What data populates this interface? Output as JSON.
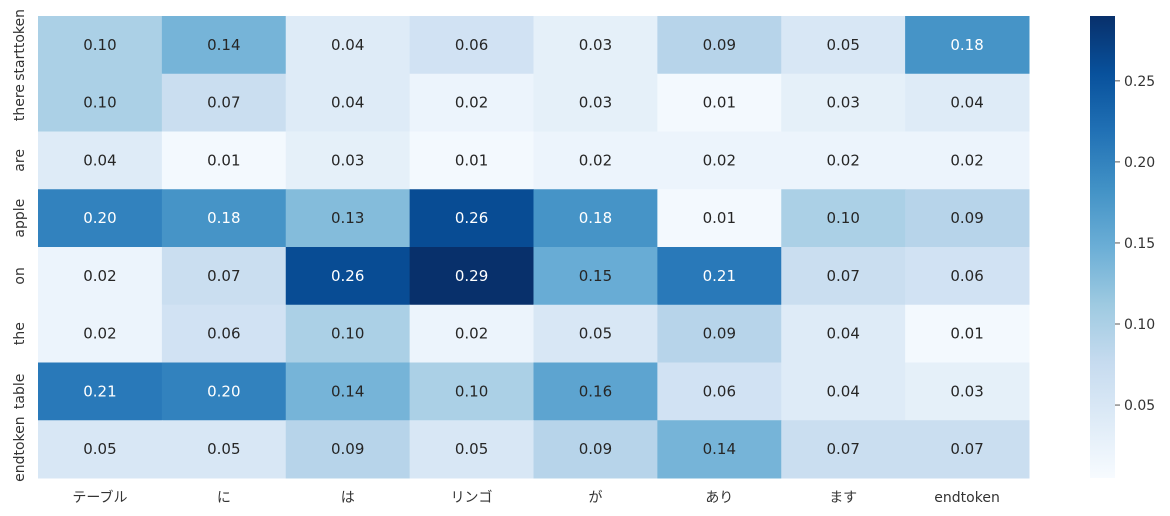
{
  "chart_data": {
    "type": "heatmap",
    "title": "",
    "xlabel": "",
    "ylabel": "",
    "x_categories": [
      "テーブル",
      "に",
      "は",
      "リンゴ",
      "が",
      "あり",
      "ます",
      "endtoken"
    ],
    "y_categories": [
      "starttoken",
      "there",
      "are",
      "apple",
      "on",
      "the",
      "table",
      "endtoken"
    ],
    "values": [
      [
        0.1,
        0.14,
        0.04,
        0.06,
        0.03,
        0.09,
        0.05,
        0.18
      ],
      [
        0.1,
        0.07,
        0.04,
        0.02,
        0.03,
        0.01,
        0.03,
        0.04
      ],
      [
        0.04,
        0.01,
        0.03,
        0.01,
        0.02,
        0.02,
        0.02,
        0.02
      ],
      [
        0.2,
        0.18,
        0.13,
        0.26,
        0.18,
        0.01,
        0.1,
        0.09
      ],
      [
        0.02,
        0.07,
        0.26,
        0.29,
        0.15,
        0.21,
        0.07,
        0.06
      ],
      [
        0.02,
        0.06,
        0.1,
        0.02,
        0.05,
        0.09,
        0.04,
        0.01
      ],
      [
        0.21,
        0.2,
        0.14,
        0.1,
        0.16,
        0.06,
        0.04,
        0.03
      ],
      [
        0.05,
        0.05,
        0.09,
        0.05,
        0.09,
        0.14,
        0.07,
        0.07
      ]
    ],
    "colormap": "Blues",
    "colorbar": {
      "range": [
        0.005,
        0.29
      ],
      "ticks": [
        0.05,
        0.1,
        0.15,
        0.2,
        0.25
      ],
      "tick_labels": [
        "0.05",
        "0.10",
        "0.15",
        "0.20",
        "0.25"
      ]
    },
    "annotate_cells": true,
    "annotation_format": "0.00",
    "grid": false,
    "legend": "colorbar-right"
  }
}
